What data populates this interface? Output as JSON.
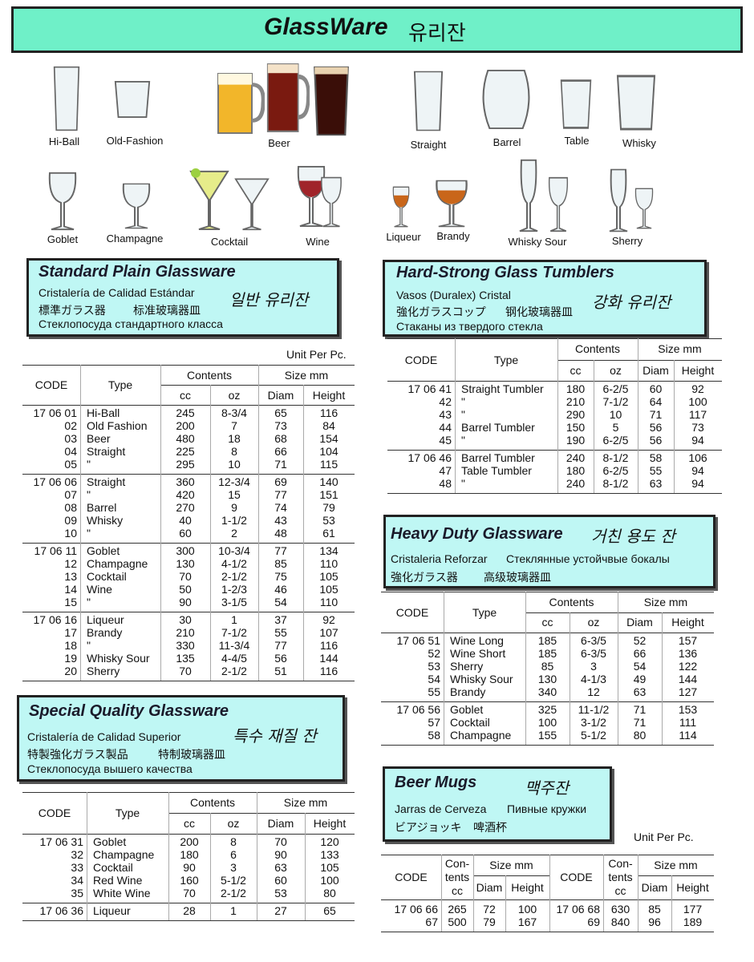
{
  "header": {
    "title": "GlassWare",
    "subtitle": "유리잔"
  },
  "gallery": [
    "Hi-Ball",
    "Old-Fashion",
    "Beer",
    "Straight",
    "Barrel",
    "Table",
    "Whisky",
    "Goblet",
    "Champagne",
    "Cocktail",
    "Wine",
    "Liqueur",
    "Brandy",
    "Whisky Sour",
    "Sherry"
  ],
  "sections": [
    {
      "title": "Standard Plain Glassware",
      "spanish": "Cristalería de Calidad Estándar",
      "korean": "일반 유리잔",
      "japanese": "標準ガラス器",
      "chinese": "标准玻璃器皿",
      "russian": "Стеклопосуда стандартного класса",
      "unit": "Unit Per Pc.",
      "table": {
        "headers": {
          "code": "CODE",
          "type": "Type",
          "contents": "Contents",
          "size": "Size mm",
          "cc": "cc",
          "oz": "oz",
          "diam": "Diam",
          "height": "Height"
        },
        "groups": [
          [
            [
              "17 06 01",
              "Hi-Ball",
              "245",
              "8-3/4",
              "65",
              "116"
            ],
            [
              "02",
              "Old Fashion",
              "200",
              "7",
              "73",
              "84"
            ],
            [
              "03",
              "Beer",
              "480",
              "18",
              "68",
              "154"
            ],
            [
              "04",
              "Straight",
              "225",
              "8",
              "66",
              "104"
            ],
            [
              "05",
              "\"",
              "295",
              "10",
              "71",
              "115"
            ]
          ],
          [
            [
              "17 06 06",
              "Straight",
              "360",
              "12-3/4",
              "69",
              "140"
            ],
            [
              "07",
              "\"",
              "420",
              "15",
              "77",
              "151"
            ],
            [
              "08",
              "Barrel",
              "270",
              "9",
              "74",
              "79"
            ],
            [
              "09",
              "Whisky",
              "40",
              "1-1/2",
              "43",
              "53"
            ],
            [
              "10",
              "\"",
              "60",
              "2",
              "48",
              "61"
            ]
          ],
          [
            [
              "17 06 11",
              "Goblet",
              "300",
              "10-3/4",
              "77",
              "134"
            ],
            [
              "12",
              "Champagne",
              "130",
              "4-1/2",
              "85",
              "110"
            ],
            [
              "13",
              "Cocktail",
              "70",
              "2-1/2",
              "75",
              "105"
            ],
            [
              "14",
              "Wine",
              "50",
              "1-2/3",
              "46",
              "105"
            ],
            [
              "15",
              "\"",
              "90",
              "3-1/5",
              "54",
              "110"
            ]
          ],
          [
            [
              "17 06 16",
              "Liqueur",
              "30",
              "1",
              "37",
              "92"
            ],
            [
              "17",
              "Brandy",
              "210",
              "7-1/2",
              "55",
              "107"
            ],
            [
              "18",
              "\"",
              "330",
              "11-3/4",
              "77",
              "116"
            ],
            [
              "19",
              "Whisky Sour",
              "135",
              "4-4/5",
              "56",
              "144"
            ],
            [
              "20",
              "Sherry",
              "70",
              "2-1/2",
              "51",
              "116"
            ]
          ]
        ]
      }
    },
    {
      "title": "Special Quality Glassware",
      "spanish": "Cristalería de Calidad Superior",
      "korean": "특수 재질 잔",
      "japanese": "特製強化ガラス製品",
      "chinese": "特制玻璃器皿",
      "russian": "Стеклопосуда вышего качества",
      "table": {
        "headers": {
          "code": "CODE",
          "type": "Type",
          "contents": "Contents",
          "size": "Size mm",
          "cc": "cc",
          "oz": "oz",
          "diam": "Diam",
          "height": "Height"
        },
        "groups": [
          [
            [
              "17 06 31",
              "Goblet",
              "200",
              "8",
              "70",
              "120"
            ],
            [
              "32",
              "Champagne",
              "180",
              "6",
              "90",
              "133"
            ],
            [
              "33",
              "Cocktail",
              "90",
              "3",
              "63",
              "105"
            ],
            [
              "34",
              "Red Wine",
              "160",
              "5-1/2",
              "60",
              "100"
            ],
            [
              "35",
              "White Wine",
              "70",
              "2-1/2",
              "53",
              "80"
            ]
          ],
          [
            [
              "17 06 36",
              "Liqueur",
              "28",
              "1",
              "27",
              "65"
            ]
          ]
        ]
      }
    },
    {
      "title": "Hard-Strong Glass Tumblers",
      "spanish": "Vasos (Duralex) Cristal",
      "korean": "강화 유리잔",
      "japanese": "強化ガラスコップ",
      "chinese": "钢化玻璃器皿",
      "russian": "Стаканы из твердого стекла",
      "table": {
        "headers": {
          "code": "CODE",
          "type": "Type",
          "contents": "Contents",
          "size": "Size mm",
          "cc": "cc",
          "oz": "oz",
          "diam": "Diam",
          "height": "Height"
        },
        "groups": [
          [
            [
              "17 06 41",
              "Straight Tumbler",
              "180",
              "6-2/5",
              "60",
              "92"
            ],
            [
              "42",
              "\"",
              "210",
              "7-1/2",
              "64",
              "100"
            ],
            [
              "43",
              "\"",
              "290",
              "10",
              "71",
              "117"
            ],
            [
              "44",
              "Barrel Tumbler",
              "150",
              "5",
              "56",
              "73"
            ],
            [
              "45",
              "\"",
              "190",
              "6-2/5",
              "56",
              "94"
            ]
          ],
          [
            [
              "17 06 46",
              "Barrel Tumbler",
              "240",
              "8-1/2",
              "58",
              "106"
            ],
            [
              "47",
              "Table Tumbler",
              "180",
              "6-2/5",
              "55",
              "94"
            ],
            [
              "48",
              "\"",
              "240",
              "8-1/2",
              "63",
              "94"
            ]
          ]
        ]
      }
    },
    {
      "title": "Heavy Duty Glassware",
      "spanish": "Cristaleria Reforzar",
      "korean": "거친 용도 잔",
      "japanese": "強化ガラス器",
      "chinese": "高级玻璃器皿",
      "russian": "Стеклянные устойчвые бокалы",
      "table": {
        "headers": {
          "code": "CODE",
          "type": "Type",
          "contents": "Contents",
          "size": "Size mm",
          "cc": "cc",
          "oz": "oz",
          "diam": "Diam",
          "height": "Height"
        },
        "groups": [
          [
            [
              "17 06 51",
              "Wine Long",
              "185",
              "6-3/5",
              "52",
              "157"
            ],
            [
              "52",
              "Wine Short",
              "185",
              "6-3/5",
              "66",
              "136"
            ],
            [
              "53",
              "Sherry",
              "85",
              "3",
              "54",
              "122"
            ],
            [
              "54",
              "Whisky Sour",
              "130",
              "4-1/3",
              "49",
              "144"
            ],
            [
              "55",
              "Brandy",
              "340",
              "12",
              "63",
              "127"
            ]
          ],
          [
            [
              "17 06 56",
              "Goblet",
              "325",
              "11-1/2",
              "71",
              "153"
            ],
            [
              "57",
              "Cocktail",
              "100",
              "3-1/2",
              "71",
              "111"
            ],
            [
              "58",
              "Champagne",
              "155",
              "5-1/2",
              "80",
              "114"
            ]
          ]
        ]
      }
    }
  ],
  "beer_mugs": {
    "title": "Beer Mugs",
    "korean": "맥주잔",
    "spanish": "Jarras de Cerveza",
    "russian": "Пивные кружки",
    "japanese": "ビアジョッキ",
    "chinese": "啤酒杯",
    "unit": "Unit Per Pc.",
    "table": {
      "headers": {
        "code": "CODE",
        "contents": [
          "Con-",
          "tents",
          "cc"
        ],
        "size": "Size mm",
        "diam": "Diam",
        "height": "Height"
      },
      "rows": [
        [
          "17 06 66",
          "265",
          "72",
          "100",
          "17 06 68",
          "630",
          "85",
          "177"
        ],
        [
          "67",
          "500",
          "79",
          "167",
          "69",
          "840",
          "96",
          "189"
        ]
      ]
    }
  }
}
